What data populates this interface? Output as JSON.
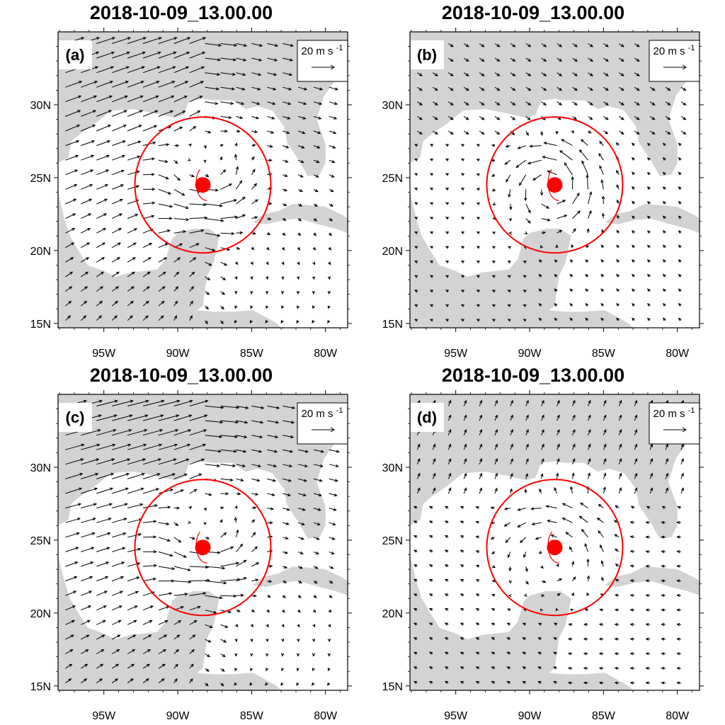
{
  "figure": {
    "panels": [
      {
        "title": "2018-10-09_13.00.00",
        "label": "(a)"
      },
      {
        "title": "2018-10-09_13.00.00",
        "label": "(b)"
      },
      {
        "title": "2018-10-09_13.00.00",
        "label": "(c)"
      },
      {
        "title": "2018-10-09_13.00.00",
        "label": "(d)"
      }
    ],
    "reference_vector": {
      "value": "20",
      "unit_text": "m s",
      "unit_exponent": "-1"
    },
    "lat_ticks": [
      "30N",
      "25N",
      "20N",
      "15N"
    ],
    "lon_ticks": [
      "95W",
      "90W",
      "85W",
      "80W"
    ],
    "storm_center": {
      "lon": -88.3,
      "lat": 24.5
    },
    "circle_radius_deg": 4.6,
    "colors": {
      "land": "#d3d3d3",
      "ocean": "#ffffff",
      "vectors": "#000000",
      "storm": "#ff0000",
      "circle": "#ff0000"
    }
  }
}
